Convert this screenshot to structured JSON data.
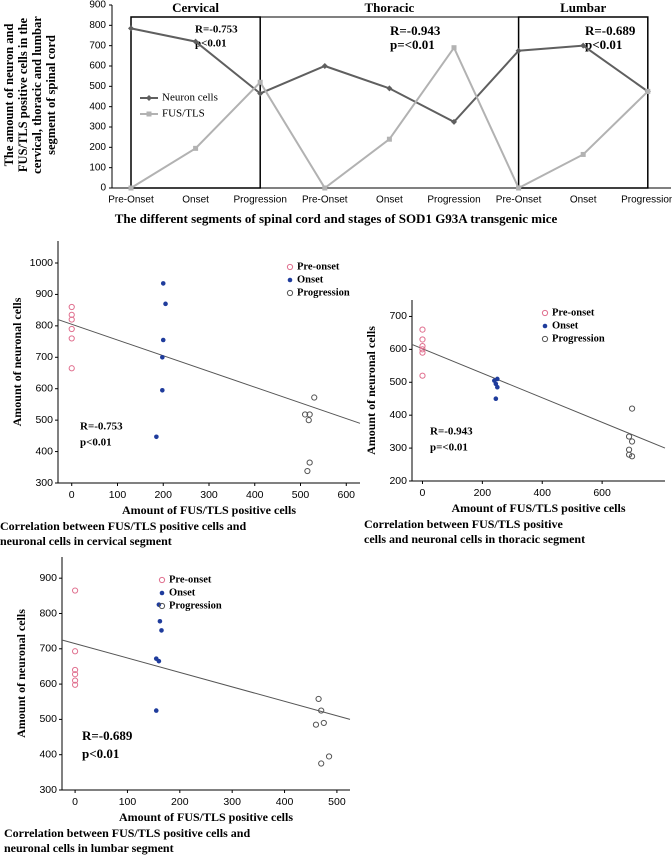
{
  "chart_data": [
    {
      "type": "line",
      "groups": [
        "Cervical",
        "Thoracic",
        "Lumbar"
      ],
      "categories": [
        "Pre-Onset",
        "Onset",
        "Progression",
        "Pre-Onset",
        "Onset",
        "Progression",
        "Pre-Onset",
        "Onset",
        "Progression"
      ],
      "series": [
        {
          "name": "Neuron cells",
          "color": "#5f5f5f",
          "marker": "diamond",
          "values": [
            785,
            720,
            465,
            600,
            490,
            325,
            675,
            700,
            475
          ]
        },
        {
          "name": "FUS/TLS",
          "color": "#b2b2b2",
          "marker": "square",
          "values": [
            0,
            195,
            520,
            0,
            240,
            690,
            0,
            165,
            475
          ]
        }
      ],
      "annotations": [
        [
          "R=-0.753",
          "p<0.01"
        ],
        [
          "R=-0.943",
          "p=<0.01"
        ],
        [
          "R=-0.689",
          "p<0.01"
        ]
      ],
      "ylabel": [
        "The amount of neuron and",
        "FUS/TLS positive cells in the",
        "cervical, thoracic and lumbar",
        "segment of spinal cord"
      ],
      "xlabel": "The different segments of spinal cord and stages of SOD1 G93A transgenic mice",
      "ylim": [
        0,
        900
      ],
      "yticks": [
        0,
        100,
        200,
        300,
        400,
        500,
        600,
        700,
        800,
        900
      ]
    },
    {
      "type": "scatter",
      "series": [
        {
          "name": "Pre-onset",
          "color": "#e0708f",
          "marker": "open",
          "x": [
            0,
            0,
            0,
            0,
            0,
            0
          ],
          "values": [
            860,
            835,
            820,
            790,
            760,
            665
          ]
        },
        {
          "name": "Onset",
          "color": "#1f3c9c",
          "marker": "filled",
          "x": [
            200,
            205,
            200,
            198,
            198,
            185
          ],
          "values": [
            935,
            870,
            755,
            700,
            595,
            447
          ]
        },
        {
          "name": "Progression",
          "color": "#555555",
          "marker": "open",
          "x": [
            510,
            520,
            518,
            530,
            520,
            515
          ],
          "values": [
            518,
            518,
            500,
            572,
            365,
            338
          ]
        }
      ],
      "trend_line": {
        "x": [
          -30,
          630
        ],
        "y": [
          820,
          490
        ]
      },
      "annotation": [
        "R=-0.753",
        "p<0.01"
      ],
      "xlabel": "Amount of FUS/TLS positive cells",
      "ylabel": "Amount of neuronal cells",
      "caption": [
        "Correlation between FUS/TLS positive cells and",
        "neuronal cells in cervical segment"
      ],
      "xlim": [
        -30,
        630
      ],
      "ylim": [
        300,
        1070
      ],
      "xticks": [
        0,
        100,
        200,
        300,
        400,
        500,
        600
      ],
      "yticks": [
        300,
        400,
        500,
        600,
        700,
        800,
        900,
        1000
      ]
    },
    {
      "type": "scatter",
      "series": [
        {
          "name": "Pre-onset",
          "color": "#e0708f",
          "marker": "open",
          "x": [
            0,
            0,
            0,
            0,
            0,
            0
          ],
          "values": [
            660,
            630,
            610,
            600,
            590,
            520
          ]
        },
        {
          "name": "Onset",
          "color": "#1f3c9c",
          "marker": "filled",
          "x": [
            240,
            250,
            245,
            250,
            245
          ],
          "values": [
            505,
            510,
            495,
            485,
            450
          ]
        },
        {
          "name": "Progression",
          "color": "#555555",
          "marker": "open",
          "x": [
            700,
            690,
            700,
            690,
            690,
            700
          ],
          "values": [
            420,
            335,
            320,
            295,
            280,
            275
          ]
        }
      ],
      "trend_line": {
        "x": [
          -35,
          810
        ],
        "y": [
          615,
          300
        ]
      },
      "annotation": [
        "R=-0.943",
        "p=<0.01"
      ],
      "xlabel": "Amount of FUS/TLS positive cells",
      "ylabel": "Amount of neuronal cells",
      "caption": [
        "Correlation between FUS/TLS positive",
        "cells and neuronal cells in thoracic segment"
      ],
      "xlim": [
        -35,
        810
      ],
      "ylim": [
        200,
        750
      ],
      "xticks": [
        0,
        200,
        400,
        600
      ],
      "yticks": [
        200,
        300,
        400,
        500,
        600,
        700
      ]
    },
    {
      "type": "scatter",
      "series": [
        {
          "name": "Pre-onset",
          "color": "#e0708f",
          "marker": "open",
          "x": [
            0,
            0,
            0,
            0,
            0,
            0
          ],
          "values": [
            865,
            693,
            640,
            628,
            610,
            598
          ]
        },
        {
          "name": "Onset",
          "color": "#1f3c9c",
          "marker": "filled",
          "x": [
            160,
            162,
            165,
            155,
            160,
            155
          ],
          "values": [
            825,
            778,
            752,
            672,
            665,
            525
          ]
        },
        {
          "name": "Progression",
          "color": "#555555",
          "marker": "open",
          "x": [
            465,
            470,
            475,
            460,
            485,
            470
          ],
          "values": [
            558,
            525,
            490,
            485,
            395,
            375
          ]
        }
      ],
      "trend_line": {
        "x": [
          -25,
          525
        ],
        "y": [
          725,
          500
        ]
      },
      "annotation": [
        "R=-0.689",
        "p<0.01"
      ],
      "xlabel": "Amount of FUS/TLS positive cells",
      "ylabel": "Amount of neuronal cells",
      "caption": [
        "Correlation between FUS/TLS positive cells and",
        "neuronal cells in lumbar segment"
      ],
      "xlim": [
        -25,
        525
      ],
      "ylim": [
        300,
        960
      ],
      "xticks": [
        0,
        100,
        200,
        300,
        400,
        500
      ],
      "yticks": [
        300,
        400,
        500,
        600,
        700,
        800,
        900
      ]
    }
  ]
}
